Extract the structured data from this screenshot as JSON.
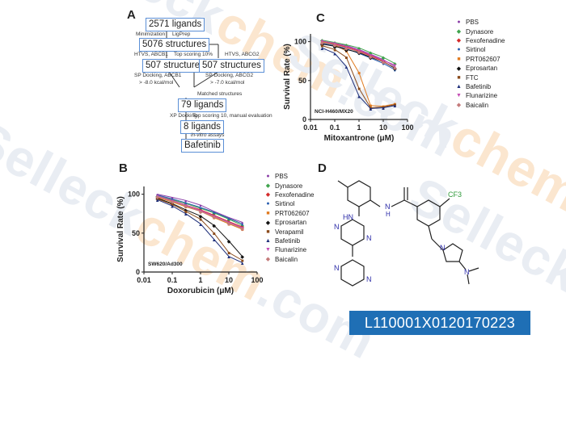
{
  "watermark": {
    "text": "Selleckchem.com",
    "main": "Selleck",
    "accent": "chem",
    "suffix": ".com"
  },
  "panels": {
    "a": "A",
    "b": "B",
    "c": "C",
    "d": "D"
  },
  "flowchart": {
    "boxes": [
      "2571 ligands",
      "5076 structures",
      "507 structures",
      "507 structures",
      "79 ligands",
      "8 ligands",
      "Bafetinib"
    ],
    "notes": [
      "Minimization",
      "LigPrep",
      "HTVS, ABCB1",
      "Top scoring 10%",
      "HTVS, ABCG2",
      "SP Docking, ABCB1",
      "> -8.0 kcal/mol",
      "SP Docking, ABCG2",
      "> -7.0 kcal/mol",
      "Matched structures",
      "XP Docking",
      "Top scoring 10, manual evaluation",
      "in-vitro assays"
    ]
  },
  "legend_items": [
    {
      "label": "PBS",
      "color": "#8b3fa8",
      "marker": "●"
    },
    {
      "label": "Dynasore",
      "color": "#3fa34d",
      "marker": "◆"
    },
    {
      "label": "Fexofenadine",
      "color": "#d42a2a",
      "marker": "◆"
    },
    {
      "label": "Sirtinol",
      "color": "#2b5fb0",
      "marker": "●"
    },
    {
      "label": "PRT062607",
      "color": "#e07a1f",
      "marker": "■"
    },
    {
      "label": "Eprosartan",
      "color": "#111111",
      "marker": "◆"
    },
    {
      "label": "FTC",
      "color": "#8a4a1a",
      "marker": "■"
    },
    {
      "label": "Bafetinib",
      "color": "#1e2f7a",
      "marker": "▲"
    },
    {
      "label": "Flunarizine",
      "color": "#c44bb4",
      "marker": "▼"
    },
    {
      "label": "Baicalin",
      "color": "#c47a7a",
      "marker": "◆"
    }
  ],
  "legend_b_items": [
    "PBS",
    "Dynasore",
    "Fexofenadine",
    "Sirtinol",
    "PRT062607",
    "Eprosartan",
    "Verapamil",
    "Bafetinib",
    "Flunarizine",
    "Baicalin"
  ],
  "chart_data": [
    {
      "type": "line",
      "panel": "C",
      "cell_line": "NCI-H460/MX20",
      "xlabel": "Mitoxantrone (μM)",
      "ylabel": "Survival Rate (%)",
      "xscale": "log",
      "xlim": [
        0.01,
        100
      ],
      "ylim": [
        0,
        110
      ],
      "x_ticks": [
        "0.01",
        "0.1",
        "1",
        "10",
        "100"
      ],
      "y_ticks": [
        "0",
        "50",
        "100"
      ],
      "x": [
        0.03,
        0.1,
        0.3,
        1,
        3,
        10,
        30
      ],
      "series": [
        {
          "name": "PBS",
          "values": [
            100,
            98,
            95,
            90,
            84,
            77,
            68
          ]
        },
        {
          "name": "Dynasore",
          "values": [
            102,
            99,
            96,
            92,
            86,
            80,
            72
          ]
        },
        {
          "name": "Fexofenadine",
          "values": [
            99,
            97,
            93,
            88,
            82,
            75,
            66
          ]
        },
        {
          "name": "Sirtinol",
          "values": [
            98,
            95,
            91,
            85,
            79,
            72,
            64
          ]
        },
        {
          "name": "PRT062607",
          "values": [
            100,
            96,
            88,
            60,
            18,
            17,
            20
          ]
        },
        {
          "name": "Eprosartan",
          "values": [
            97,
            94,
            90,
            86,
            80,
            74,
            66
          ]
        },
        {
          "name": "FTC",
          "values": [
            95,
            90,
            80,
            40,
            15,
            16,
            19
          ]
        },
        {
          "name": "Bafetinib",
          "values": [
            92,
            85,
            68,
            30,
            14,
            15,
            18
          ]
        },
        {
          "name": "Flunarizine",
          "values": [
            101,
            98,
            94,
            89,
            83,
            76,
            70
          ]
        },
        {
          "name": "Baicalin",
          "values": [
            99,
            96,
            92,
            87,
            81,
            74,
            67
          ]
        }
      ]
    },
    {
      "type": "line",
      "panel": "B",
      "cell_line": "SW620/Ad300",
      "xlabel": "Doxorubicin (μM)",
      "ylabel": "Survival Rate (%)",
      "xscale": "log",
      "xlim": [
        0.01,
        100
      ],
      "ylim": [
        0,
        110
      ],
      "x_ticks": [
        "0.01",
        "0.1",
        "1",
        "10",
        "100"
      ],
      "y_ticks": [
        "0",
        "50",
        "100"
      ],
      "x": [
        0.03,
        0.1,
        0.3,
        1,
        3,
        10,
        30
      ],
      "series": [
        {
          "name": "PBS",
          "values": [
            100,
            96,
            92,
            86,
            78,
            70,
            64
          ]
        },
        {
          "name": "Dynasore",
          "values": [
            98,
            93,
            88,
            82,
            76,
            68,
            60
          ]
        },
        {
          "name": "Fexofenadine",
          "values": [
            97,
            92,
            86,
            80,
            73,
            65,
            58
          ]
        },
        {
          "name": "Sirtinol",
          "values": [
            99,
            94,
            89,
            83,
            77,
            69,
            62
          ]
        },
        {
          "name": "PRT062607",
          "values": [
            96,
            90,
            84,
            78,
            70,
            62,
            55
          ]
        },
        {
          "name": "Eprosartan",
          "values": [
            95,
            88,
            80,
            72,
            60,
            40,
            20
          ]
        },
        {
          "name": "Verapamil",
          "values": [
            94,
            87,
            78,
            68,
            50,
            25,
            15
          ]
        },
        {
          "name": "Bafetinib",
          "values": [
            93,
            85,
            75,
            62,
            42,
            20,
            12
          ]
        },
        {
          "name": "Flunarizine",
          "values": [
            98,
            92,
            86,
            79,
            72,
            64,
            57
          ]
        },
        {
          "name": "Baicalin",
          "values": [
            97,
            91,
            85,
            78,
            71,
            63,
            56
          ]
        }
      ]
    }
  ],
  "structure": {
    "labels": [
      "HN",
      "N",
      "H",
      "N",
      "N",
      "N",
      "N",
      "N",
      "CF3",
      "N"
    ]
  },
  "catalog_code": "L110001X0120170223"
}
